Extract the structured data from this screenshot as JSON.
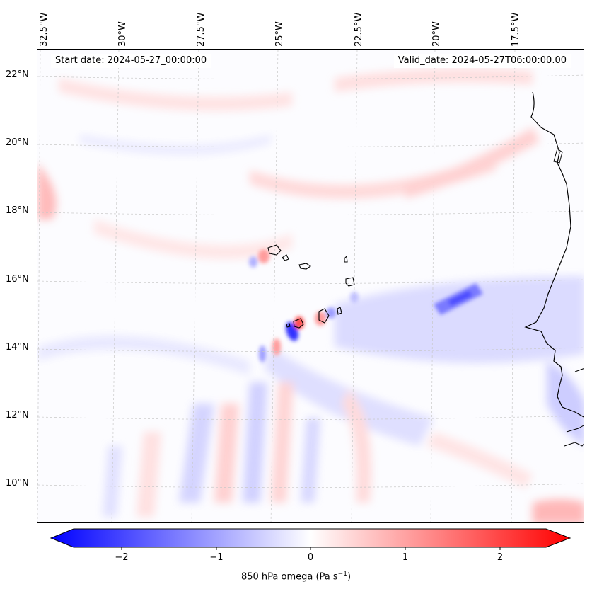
{
  "map": {
    "start_date": "Start date: 2024-05-27_00:00:00",
    "valid_date": "Valid_date: 2024-05-27T06:00:00.00",
    "lon_labels": [
      "32.5°W",
      "30°W",
      "27.5°W",
      "25°W",
      "22.5°W",
      "20°W",
      "17.5°W"
    ],
    "lat_labels": [
      "22°N",
      "20°N",
      "18°N",
      "16°N",
      "14°N",
      "12°N",
      "10°N"
    ],
    "coastline_color": "#000000",
    "gridline_style": "dashed light gray"
  },
  "colorbar": {
    "title": "850 hPa omega (Pa s",
    "title_exp": "−1",
    "title_end": ")",
    "ticks": [
      "−2",
      "−1",
      "0",
      "1",
      "2"
    ],
    "tick_values": [
      -2,
      -1,
      0,
      1,
      2
    ],
    "range": [
      -2.5,
      2.5
    ],
    "min_color": "#0000ff",
    "mid_color": "#ffffff",
    "max_color": "#ff0000",
    "extend": "both"
  }
}
